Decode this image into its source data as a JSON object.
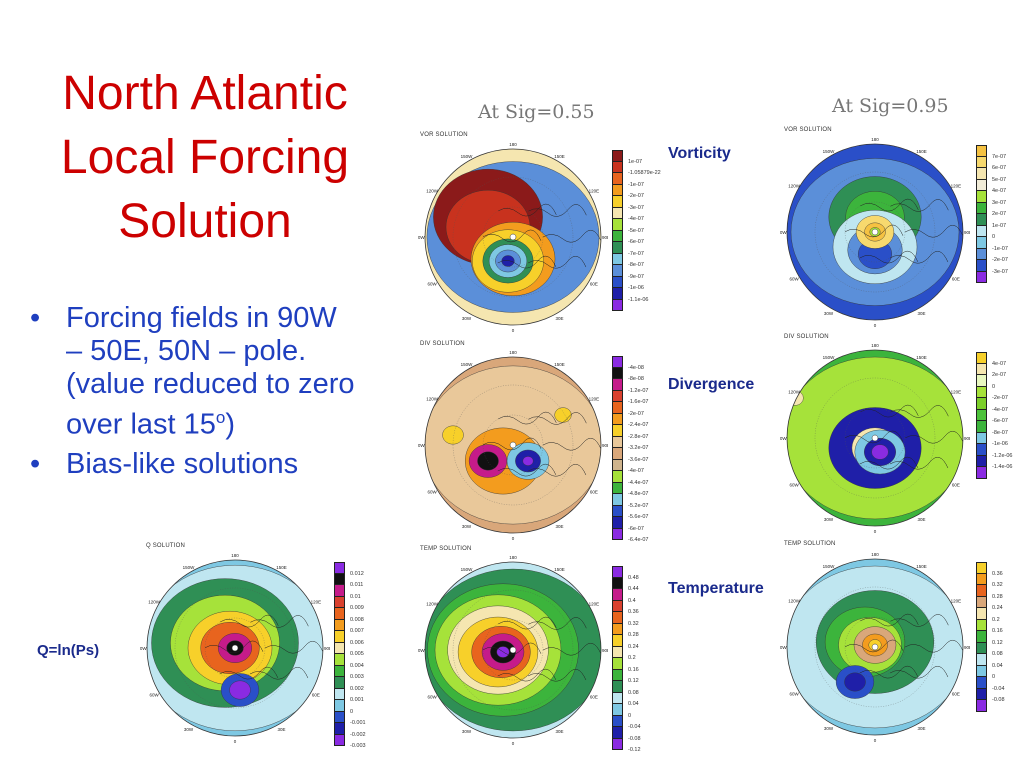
{
  "title": [
    "North Atlantic",
    "Local Forcing",
    "Solution"
  ],
  "bullets": [
    {
      "text": "Forcing fields in 90W – 50E, 50N – pole. (value reduced to zero over last 15",
      "sup": "o",
      "tail": ")"
    },
    {
      "text": "Bias-like solutions",
      "sup": "",
      "tail": ""
    }
  ],
  "sig_labels": {
    "left": "At  Sig=0.55",
    "right": "At  Sig=0.95"
  },
  "field_labels": {
    "vorticity": "Vorticity",
    "divergence": "Divergence",
    "temperature": "Temperature",
    "q": "Q=ln(Ps)"
  },
  "maps": {
    "vor_055": {
      "title": "VOR SOLUTION",
      "colors": [
        "#8b1a1a",
        "#c8321e",
        "#e8641e",
        "#f39c1e",
        "#f7d02a",
        "#f5e6b0",
        "#a6e23a",
        "#3cb43c",
        "#2f8f55",
        "#7ec8e3",
        "#5b8fd9",
        "#2a4fc8",
        "#1f1fa8",
        "#8a2be2"
      ],
      "labels": [
        "1e-07",
        "-1.05879e-22",
        "-1e-07",
        "-2e-07",
        "-3e-07",
        "-4e-07",
        "-5e-07",
        "-6e-07",
        "-7e-07",
        "-8e-07",
        "-9e-07",
        "-1e-06",
        "-1.1e-06"
      ]
    },
    "vor_095": {
      "title": "VOR SOLUTION",
      "colors": [
        "#f5c242",
        "#f7d96e",
        "#f5e6b0",
        "#f1ecd8",
        "#a6e23a",
        "#3cb43c",
        "#2f8f55",
        "#bfe6f0",
        "#7ec8e3",
        "#5b8fd9",
        "#2a4fc8",
        "#8a2be2"
      ],
      "labels": [
        "7e-07",
        "6e-07",
        "5e-07",
        "4e-07",
        "3e-07",
        "2e-07",
        "1e-07",
        "0",
        "-1e-07",
        "-2e-07",
        "-3e-07"
      ]
    },
    "div_055": {
      "title": "DIV SOLUTION",
      "colors": [
        "#8a2be2",
        "#111111",
        "#c51b8a",
        "#d9412f",
        "#e8641e",
        "#f39c1e",
        "#f7d02a",
        "#e9c89a",
        "#d9a77a",
        "#cfb48d",
        "#a6e23a",
        "#3cb43c",
        "#7ec8e3",
        "#2a4fc8",
        "#1f1fa8",
        "#8a2be2"
      ],
      "labels": [
        "-4e-08",
        "-8e-08",
        "-1.2e-07",
        "-1.6e-07",
        "-2e-07",
        "-2.4e-07",
        "-2.8e-07",
        "-3.2e-07",
        "-3.6e-07",
        "-4e-07",
        "-4.4e-07",
        "-4.8e-07",
        "-5.2e-07",
        "-5.6e-07",
        "-6e-07",
        "-6.4e-07"
      ]
    },
    "div_095": {
      "title": "DIV SOLUTION",
      "colors": [
        "#f7d02a",
        "#f5e6b0",
        "#e8f7c0",
        "#a6e23a",
        "#7ccf2a",
        "#4cc23a",
        "#3cb43c",
        "#7ec8e3",
        "#2a4fc8",
        "#1f1fa8",
        "#8a2be2"
      ],
      "labels": [
        "4e-07",
        "2e-07",
        "0",
        "-2e-07",
        "-4e-07",
        "-6e-07",
        "-8e-07",
        "-1e-06",
        "-1.2e-06",
        "-1.4e-06"
      ]
    },
    "q": {
      "title": "Q SOLUTION",
      "colors": [
        "#8a2be2",
        "#111111",
        "#c51b8a",
        "#d9412f",
        "#e8641e",
        "#f39c1e",
        "#f7d02a",
        "#f5e6b0",
        "#a6e23a",
        "#3cb43c",
        "#2f8f55",
        "#bfe6f0",
        "#7ec8e3",
        "#2a4fc8",
        "#1f1fa8",
        "#8a2be2"
      ],
      "labels": [
        "0.012",
        "0.011",
        "0.01",
        "0.009",
        "0.008",
        "0.007",
        "0.006",
        "0.005",
        "0.004",
        "0.003",
        "0.002",
        "0.001",
        "0",
        "-0.001",
        "-0.002",
        "-0.003"
      ]
    },
    "temp_055": {
      "title": "TEMP SOLUTION",
      "colors": [
        "#8a2be2",
        "#111111",
        "#c51b8a",
        "#d9412f",
        "#e8641e",
        "#f39c1e",
        "#f7d02a",
        "#f5e6b0",
        "#a6e23a",
        "#3cb43c",
        "#2f8f55",
        "#bfe6f0",
        "#7ec8e3",
        "#2a4fc8",
        "#1f1fa8",
        "#8a2be2"
      ],
      "labels": [
        "0.48",
        "0.44",
        "0.4",
        "0.36",
        "0.32",
        "0.28",
        "0.24",
        "0.2",
        "0.16",
        "0.12",
        "0.08",
        "0.04",
        "0",
        "-0.04",
        "-0.08",
        "-0.12"
      ]
    },
    "temp_095": {
      "title": "TEMP SOLUTION",
      "colors": [
        "#f7d02a",
        "#f39c1e",
        "#e8641e",
        "#d9a77a",
        "#f5e6b0",
        "#a6e23a",
        "#3cb43c",
        "#2f8f55",
        "#bfe6f0",
        "#7ec8e3",
        "#2a4fc8",
        "#1f1fa8",
        "#8a2be2"
      ],
      "labels": [
        "0.36",
        "0.32",
        "0.28",
        "0.24",
        "0.2",
        "0.16",
        "0.12",
        "0.08",
        "0.04",
        "0",
        "-0.04",
        "-0.08"
      ]
    }
  },
  "longitude_labels": [
    "180",
    "150W",
    "150E",
    "120W",
    "120E",
    "90W",
    "90E",
    "60W",
    "60E",
    "30W",
    "30E",
    "0"
  ]
}
